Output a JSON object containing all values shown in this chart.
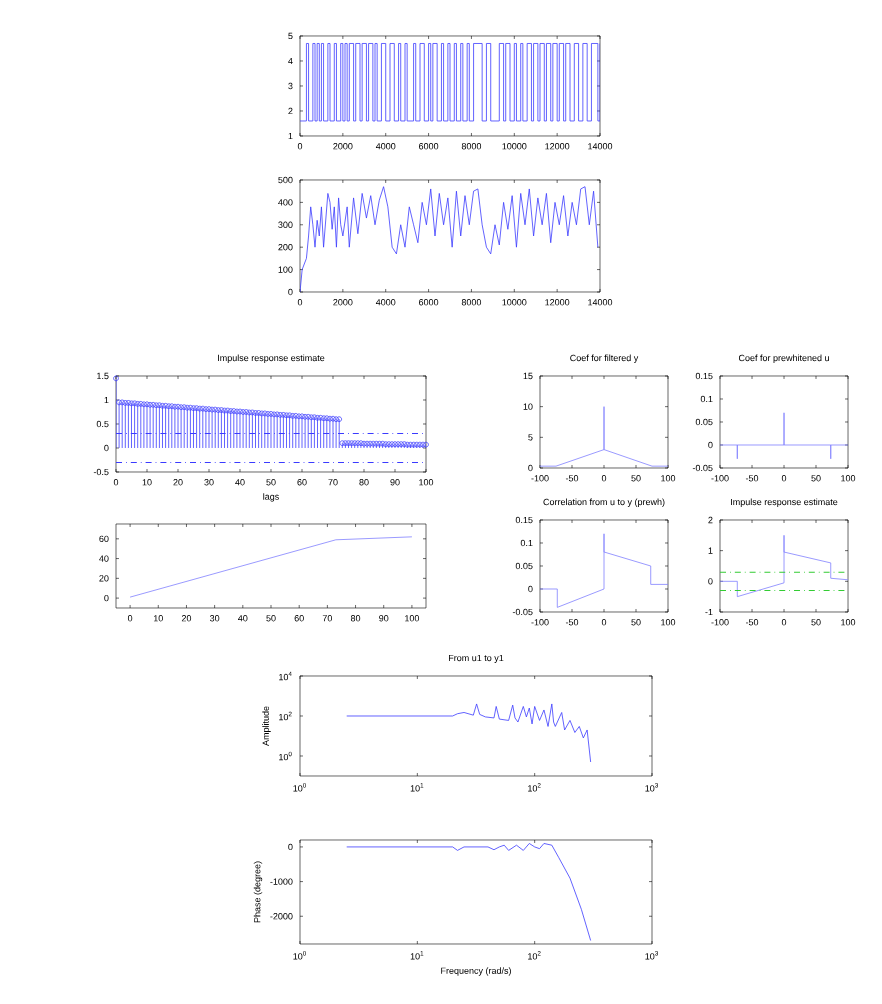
{
  "chart_data": [
    {
      "type": "step",
      "color": "#3b3bff",
      "xlim": [
        0,
        14000
      ],
      "ylim": [
        1,
        5
      ],
      "xticks": [
        0,
        2000,
        4000,
        6000,
        8000,
        10000,
        12000,
        14000
      ],
      "yticks": [
        1,
        2,
        3,
        4,
        5
      ],
      "x": [
        0,
        300,
        400,
        600,
        700,
        800,
        900,
        1000,
        1100,
        1300,
        1400,
        1600,
        1700,
        1900,
        2000,
        2100,
        2200,
        2300,
        2500,
        2600,
        2800,
        2900,
        3100,
        3200,
        3400,
        3500,
        3600,
        3800,
        4000,
        4200,
        4400,
        4600,
        4700,
        4900,
        5000,
        5300,
        5400,
        5600,
        5800,
        6000,
        6100,
        6200,
        6400,
        6600,
        6700,
        6900,
        7000,
        7200,
        7300,
        7500,
        7600,
        7800,
        7900,
        8100,
        8500,
        8700,
        8900,
        9300,
        9500,
        9600,
        9800,
        10000,
        10100,
        10300,
        10400,
        10600,
        10800,
        10900,
        11100,
        11200,
        11400,
        11500,
        11700,
        11800,
        12000,
        12100,
        12300,
        12400,
        12600,
        12800,
        13000,
        13200,
        13400,
        13600,
        13900,
        14000
      ],
      "values": [
        1.6,
        4.7,
        1.6,
        4.7,
        1.6,
        4.7,
        1.6,
        4.7,
        1.6,
        4.7,
        1.6,
        4.7,
        1.6,
        4.7,
        1.6,
        4.7,
        1.6,
        4.7,
        1.6,
        4.7,
        1.6,
        4.7,
        1.6,
        4.7,
        1.6,
        4.7,
        1.6,
        4.7,
        1.6,
        4.7,
        1.6,
        4.7,
        1.6,
        4.7,
        1.6,
        4.7,
        1.6,
        4.7,
        1.6,
        4.7,
        1.6,
        4.7,
        1.6,
        4.7,
        1.6,
        4.7,
        1.6,
        4.7,
        1.6,
        4.7,
        1.6,
        4.7,
        1.6,
        4.7,
        1.6,
        4.7,
        1.6,
        4.7,
        1.6,
        4.7,
        1.6,
        4.7,
        1.6,
        4.7,
        1.6,
        4.7,
        1.6,
        4.7,
        1.6,
        4.7,
        1.6,
        4.7,
        1.6,
        4.7,
        1.6,
        4.7,
        1.6,
        4.7,
        1.6,
        4.7,
        1.6,
        4.7,
        1.6,
        4.7,
        1.6,
        4.7
      ]
    },
    {
      "type": "line",
      "color": "#3b3bff",
      "xlim": [
        0,
        14000
      ],
      "ylim": [
        0,
        500
      ],
      "xticks": [
        0,
        2000,
        4000,
        6000,
        8000,
        10000,
        12000,
        14000
      ],
      "yticks": [
        0,
        100,
        200,
        300,
        400,
        500
      ],
      "x": [
        0,
        100,
        300,
        400,
        500,
        600,
        700,
        800,
        900,
        1000,
        1100,
        1300,
        1400,
        1500,
        1600,
        1700,
        1800,
        1900,
        2000,
        2200,
        2300,
        2500,
        2700,
        2900,
        3100,
        3300,
        3500,
        3700,
        3900,
        4100,
        4300,
        4500,
        4700,
        4900,
        5100,
        5300,
        5500,
        5700,
        5900,
        6100,
        6300,
        6500,
        6700,
        6900,
        7100,
        7300,
        7500,
        7700,
        7900,
        8100,
        8300,
        8500,
        8700,
        8900,
        9100,
        9300,
        9500,
        9700,
        9900,
        10100,
        10300,
        10500,
        10700,
        10900,
        11100,
        11300,
        11500,
        11700,
        11900,
        12100,
        12300,
        12500,
        12700,
        12900,
        13100,
        13300,
        13500,
        13700,
        13900
      ],
      "values": [
        0,
        100,
        150,
        250,
        380,
        300,
        200,
        320,
        250,
        380,
        200,
        440,
        400,
        280,
        380,
        200,
        420,
        300,
        250,
        380,
        200,
        420,
        260,
        440,
        330,
        430,
        300,
        410,
        470,
        380,
        200,
        170,
        300,
        200,
        380,
        300,
        220,
        400,
        300,
        460,
        250,
        440,
        300,
        420,
        200,
        450,
        250,
        430,
        300,
        450,
        460,
        300,
        200,
        170,
        300,
        210,
        400,
        280,
        430,
        200,
        440,
        300,
        460,
        250,
        420,
        300,
        440,
        220,
        400,
        300,
        430,
        250,
        400,
        300,
        460,
        470,
        300,
        450,
        200
      ]
    },
    {
      "type": "lollipop",
      "title": "Impulse response estimate",
      "xlabel": "lags",
      "color": "#3b3bff",
      "marker": "circle",
      "xlim": [
        0,
        100
      ],
      "ylim": [
        -0.5,
        1.5
      ],
      "xticks": [
        0,
        10,
        20,
        30,
        40,
        50,
        60,
        70,
        80,
        90,
        100
      ],
      "yticks": [
        -0.5,
        0,
        0.5,
        1,
        1.5
      ],
      "x": [
        0,
        1,
        2,
        3,
        4,
        5,
        6,
        7,
        8,
        9,
        10,
        11,
        12,
        13,
        14,
        15,
        16,
        17,
        18,
        19,
        20,
        21,
        22,
        23,
        24,
        25,
        26,
        27,
        28,
        29,
        30,
        31,
        32,
        33,
        34,
        35,
        36,
        37,
        38,
        39,
        40,
        41,
        42,
        43,
        44,
        45,
        46,
        47,
        48,
        49,
        50,
        51,
        52,
        53,
        54,
        55,
        56,
        57,
        58,
        59,
        60,
        61,
        62,
        63,
        64,
        65,
        66,
        67,
        68,
        69,
        70,
        71,
        72,
        73,
        74,
        75,
        76,
        77,
        78,
        79,
        80,
        81,
        82,
        83,
        84,
        85,
        86,
        87,
        88,
        89,
        90,
        91,
        92,
        93,
        94,
        95,
        96,
        97,
        98,
        99,
        100
      ],
      "values": [
        1.45,
        0.95,
        0.95,
        0.94,
        0.94,
        0.93,
        0.93,
        0.92,
        0.92,
        0.91,
        0.91,
        0.9,
        0.9,
        0.89,
        0.89,
        0.88,
        0.88,
        0.87,
        0.87,
        0.86,
        0.86,
        0.85,
        0.85,
        0.84,
        0.84,
        0.83,
        0.83,
        0.82,
        0.82,
        0.81,
        0.81,
        0.8,
        0.8,
        0.79,
        0.79,
        0.78,
        0.78,
        0.77,
        0.77,
        0.76,
        0.76,
        0.75,
        0.75,
        0.74,
        0.74,
        0.73,
        0.73,
        0.72,
        0.72,
        0.71,
        0.71,
        0.7,
        0.7,
        0.69,
        0.69,
        0.68,
        0.68,
        0.67,
        0.67,
        0.66,
        0.66,
        0.65,
        0.65,
        0.64,
        0.64,
        0.63,
        0.63,
        0.62,
        0.62,
        0.61,
        0.61,
        0.6,
        0.6,
        0.1,
        0.1,
        0.1,
        0.1,
        0.1,
        0.1,
        0.1,
        0.09,
        0.09,
        0.09,
        0.09,
        0.09,
        0.09,
        0.09,
        0.08,
        0.08,
        0.08,
        0.08,
        0.08,
        0.08,
        0.08,
        0.07,
        0.07,
        0.07,
        0.07,
        0.07,
        0.07,
        0.07
      ],
      "ref_lines": [
        {
          "axis": "y",
          "value": 0.3,
          "color": "#3b3bff",
          "line_style": "dashed"
        },
        {
          "axis": "y",
          "value": -0.3,
          "color": "#3b3bff",
          "line_style": "dashed"
        }
      ]
    },
    {
      "type": "line",
      "color": "#8080ff",
      "xlim": [
        -5,
        105
      ],
      "ylim": [
        -10,
        75
      ],
      "xticks": [
        0,
        10,
        20,
        30,
        40,
        50,
        60,
        70,
        80,
        90,
        100
      ],
      "yticks": [
        0,
        20,
        40,
        60
      ],
      "x": [
        0,
        73,
        100
      ],
      "values": [
        1,
        59,
        62
      ]
    },
    {
      "type": "line",
      "title": "Coef for filtered y",
      "color": "#8080ff",
      "xlim": [
        -100,
        100
      ],
      "ylim": [
        0,
        15
      ],
      "xticks": [
        -100,
        -50,
        0,
        50,
        100
      ],
      "yticks": [
        0,
        5,
        10,
        15
      ],
      "x": [
        -100,
        -75,
        0,
        0,
        0,
        75,
        100
      ],
      "values": [
        0.3,
        0.3,
        3,
        10,
        3,
        0.3,
        0.3
      ]
    },
    {
      "type": "line",
      "title": "Coef for prewhitened u",
      "color": "#8080ff",
      "xlim": [
        -100,
        100
      ],
      "ylim": [
        -0.05,
        0.15
      ],
      "xticks": [
        -100,
        -50,
        0,
        50,
        100
      ],
      "yticks": [
        -0.05,
        0,
        0.05,
        0.1,
        0.15
      ],
      "x": [
        -100,
        -73,
        -73,
        -73,
        0,
        0,
        0,
        73,
        73,
        73,
        100
      ],
      "values": [
        0,
        0,
        -0.03,
        0,
        0,
        0.07,
        0,
        0,
        -0.03,
        0,
        0
      ]
    },
    {
      "type": "line",
      "title": "Correlation from u to y (prewh)",
      "color": "#8080ff",
      "xlim": [
        -100,
        100
      ],
      "ylim": [
        -0.05,
        0.15
      ],
      "xticks": [
        -100,
        -50,
        0,
        50,
        100
      ],
      "yticks": [
        -0.05,
        0,
        0.05,
        0.1,
        0.15
      ],
      "x": [
        -100,
        -73,
        -73,
        0,
        0,
        0,
        1,
        73,
        73,
        100
      ],
      "values": [
        0,
        0,
        -0.04,
        0,
        0.12,
        0.08,
        0.08,
        0.05,
        0.01,
        0.01
      ]
    },
    {
      "type": "line",
      "title": "Impulse response estimate",
      "color": "#8080ff",
      "xlim": [
        -100,
        100
      ],
      "ylim": [
        -1,
        2
      ],
      "xticks": [
        -100,
        -50,
        0,
        50,
        100
      ],
      "yticks": [
        -1,
        0,
        1,
        2
      ],
      "x": [
        -100,
        -73,
        -73,
        0,
        0,
        0,
        1,
        73,
        73,
        100
      ],
      "values": [
        0,
        0,
        -0.5,
        -0.05,
        1.5,
        0.95,
        0.95,
        0.6,
        0.1,
        0.05
      ],
      "ref_lines": [
        {
          "axis": "y",
          "value": 0.3,
          "color": "#33cc33",
          "line_style": "dashed"
        },
        {
          "axis": "y",
          "value": -0.3,
          "color": "#33cc33",
          "line_style": "dashed"
        }
      ]
    },
    {
      "type": "line",
      "title": "From u1 to y1",
      "ylabel": "Amplitude",
      "color": "#3b3bff",
      "log": "xy",
      "xlim": [
        1,
        1000
      ],
      "ylim": [
        0.1,
        10000
      ],
      "xticks": [
        {
          "value": 1,
          "label": "10$^{0}$"
        },
        {
          "value": 10,
          "label": "10$^{1}$"
        },
        {
          "value": 100,
          "label": "10$^{2}$"
        },
        {
          "value": 1000,
          "label": "10$^{3}$"
        }
      ],
      "yticks": [
        {
          "value": 1,
          "label": "10$^{0}$"
        },
        {
          "value": 100,
          "label": "10$^{2}$"
        },
        {
          "value": 10000,
          "label": "10$^{4}$"
        }
      ],
      "x": [
        2.5,
        20,
        22,
        25,
        30,
        32,
        34,
        38,
        45,
        47,
        50,
        60,
        65,
        68,
        72,
        80,
        85,
        90,
        95,
        100,
        110,
        120,
        130,
        140,
        145,
        150,
        170,
        180,
        200,
        220,
        240,
        260,
        280,
        300
      ],
      "values": [
        100,
        100,
        130,
        150,
        110,
        400,
        120,
        90,
        80,
        300,
        70,
        60,
        350,
        80,
        50,
        300,
        90,
        250,
        40,
        300,
        60,
        200,
        30,
        400,
        50,
        30,
        150,
        20,
        60,
        15,
        30,
        8,
        20,
        0.5
      ]
    },
    {
      "type": "line",
      "ylabel": "Phase (degree)",
      "xlabel": "Frequency (rad/s)",
      "color": "#3b3bff",
      "log": "x",
      "xlim": [
        1,
        1000
      ],
      "ylim": [
        -2800,
        200
      ],
      "xticks": [
        {
          "value": 1,
          "label": "10$^{0}$"
        },
        {
          "value": 10,
          "label": "10$^{1}$"
        },
        {
          "value": 100,
          "label": "10$^{2}$"
        },
        {
          "value": 1000,
          "label": "10$^{3}$"
        }
      ],
      "yticks": [
        -2000,
        -1000,
        0
      ],
      "x": [
        2.5,
        20,
        22,
        25,
        30,
        40,
        45,
        50,
        55,
        60,
        70,
        80,
        90,
        100,
        110,
        120,
        140,
        160,
        200,
        250,
        300
      ],
      "values": [
        0,
        0,
        -100,
        0,
        0,
        0,
        -80,
        0,
        50,
        -100,
        50,
        -100,
        100,
        0,
        -50,
        100,
        50,
        -300,
        -900,
        -1800,
        -2700
      ]
    }
  ]
}
